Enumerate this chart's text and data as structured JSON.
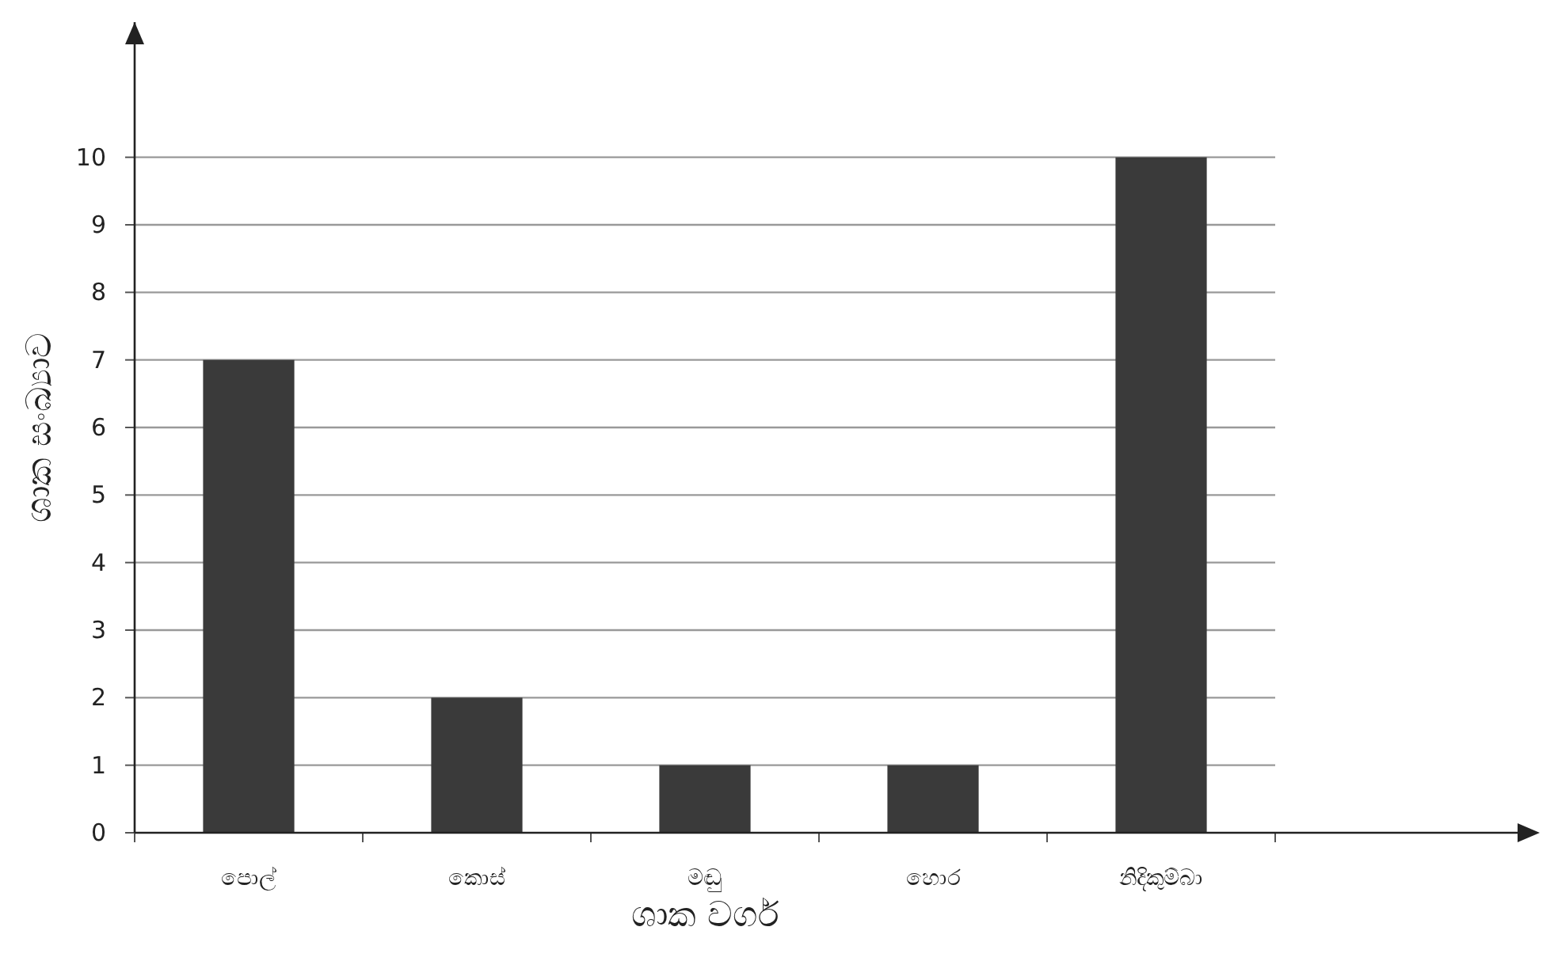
{
  "chart_data": {
    "type": "bar",
    "xlabel": "ශාක වර්ග",
    "ylabel": "ශාක සංඛ්‍යාව",
    "categories": [
      "පොල්",
      "කොස්",
      "මඬු",
      "හොර",
      "නිදිකුම්බා"
    ],
    "values": [
      7,
      2,
      1,
      1,
      10
    ],
    "color": "#3a3a3a",
    "ylim": [
      0,
      12
    ],
    "yticks": [
      0,
      1,
      2,
      3,
      4,
      5,
      6,
      7,
      8,
      9,
      10
    ],
    "grid": "y"
  }
}
